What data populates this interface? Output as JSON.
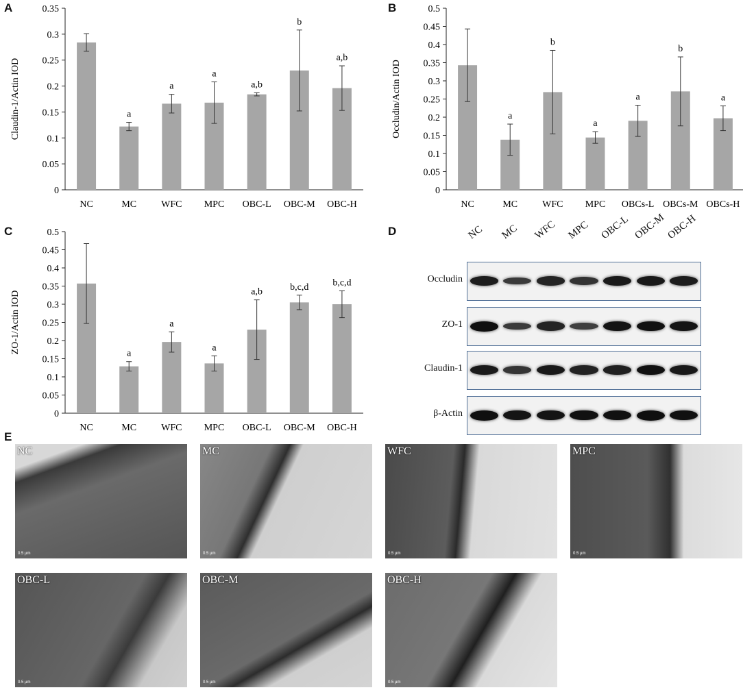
{
  "panels": {
    "A": "A",
    "B": "B",
    "C": "C",
    "D": "D",
    "E": "E"
  },
  "chart_data": [
    {
      "id": "A",
      "type": "bar",
      "ylabel": "Claudin-1/Actin IOD",
      "ylim": [
        0,
        0.35
      ],
      "yticks": [
        0,
        0.05,
        0.1,
        0.15,
        0.2,
        0.25,
        0.3,
        0.35
      ],
      "ytick_labels": [
        "0",
        "0.05",
        "0.1",
        "0.15",
        "0.2",
        "0.25",
        "0.3",
        "0.35"
      ],
      "categories": [
        "NC",
        "MC",
        "WFC",
        "MPC",
        "OBC-L",
        "OBC-M",
        "OBC-H"
      ],
      "values": [
        0.284,
        0.122,
        0.166,
        0.168,
        0.184,
        0.23,
        0.196
      ],
      "errors": [
        0.017,
        0.008,
        0.018,
        0.04,
        0.003,
        0.078,
        0.043
      ],
      "annotations": [
        "",
        "a",
        "a",
        "a",
        "a,b",
        "b",
        "a,b"
      ],
      "bar_color": "#a6a6a6"
    },
    {
      "id": "B",
      "type": "bar",
      "ylabel": "Occludin/Actin IOD",
      "ylim": [
        0,
        0.5
      ],
      "yticks": [
        0,
        0.05,
        0.1,
        0.15,
        0.2,
        0.25,
        0.3,
        0.35,
        0.4,
        0.45,
        0.5
      ],
      "ytick_labels": [
        "0",
        "0.05",
        "0.1",
        "0.15",
        "0.2",
        "0.25",
        "0.3",
        "0.35",
        "0.4",
        "0.45",
        "0.5"
      ],
      "categories": [
        "NC",
        "MC",
        "WFC",
        "MPC",
        "OBCs-L",
        "OBCs-M",
        "OBCs-H"
      ],
      "values": [
        0.343,
        0.138,
        0.269,
        0.144,
        0.19,
        0.271,
        0.197
      ],
      "errors": [
        0.1,
        0.043,
        0.115,
        0.016,
        0.043,
        0.095,
        0.034
      ],
      "annotations": [
        "",
        "a",
        "b",
        "a",
        "a",
        "b",
        "a"
      ],
      "bar_color": "#a6a6a6"
    },
    {
      "id": "C",
      "type": "bar",
      "ylabel": "ZO-1/Actin IOD",
      "ylim": [
        0,
        0.5
      ],
      "yticks": [
        0,
        0.05,
        0.1,
        0.15,
        0.2,
        0.25,
        0.3,
        0.35,
        0.4,
        0.45,
        0.5
      ],
      "ytick_labels": [
        "0",
        "0.05",
        "0.1",
        "0.15",
        "0.2",
        "0.25",
        "0.3",
        "0.35",
        "0.4",
        "0.45",
        "0.5"
      ],
      "categories": [
        "NC",
        "MC",
        "WFC",
        "MPC",
        "OBC-L",
        "OBC-M",
        "OBC-H"
      ],
      "values": [
        0.357,
        0.129,
        0.196,
        0.137,
        0.23,
        0.305,
        0.3
      ],
      "errors": [
        0.11,
        0.013,
        0.028,
        0.021,
        0.082,
        0.02,
        0.037
      ],
      "annotations": [
        "",
        "a",
        "a",
        "a",
        "a,b",
        "b,c,d",
        "b,c,d"
      ],
      "bar_color": "#a6a6a6"
    }
  ],
  "western_blot": {
    "columns": [
      "NC",
      "MC",
      "WFC",
      "MPC",
      "OBC-L",
      "OBC-M",
      "OBC-H"
    ],
    "rows": [
      {
        "label": "Occludin",
        "intensity": [
          0.85,
          0.55,
          0.78,
          0.62,
          0.88,
          0.9,
          0.85
        ]
      },
      {
        "label": "ZO-1",
        "intensity": [
          1.0,
          0.55,
          0.78,
          0.5,
          0.95,
          0.98,
          0.95
        ]
      },
      {
        "label": "Claudin-1",
        "intensity": [
          0.88,
          0.6,
          0.9,
          0.8,
          0.82,
          0.98,
          0.9
        ]
      },
      {
        "label": "β-Actin",
        "intensity": [
          1.0,
          0.95,
          0.95,
          0.98,
          0.98,
          1.0,
          0.98
        ]
      }
    ]
  },
  "em_images": [
    {
      "label": "NC",
      "scale": "0.5 µm"
    },
    {
      "label": "MC",
      "scale": "0.5 µm"
    },
    {
      "label": "WFC",
      "scale": "0.5 µm"
    },
    {
      "label": "MPC",
      "scale": "0.5 µm"
    },
    {
      "label": "OBC-L",
      "scale": "0.5 µm"
    },
    {
      "label": "OBC-M",
      "scale": "0.5 µm"
    },
    {
      "label": "OBC-H",
      "scale": "0.5 µm"
    }
  ]
}
